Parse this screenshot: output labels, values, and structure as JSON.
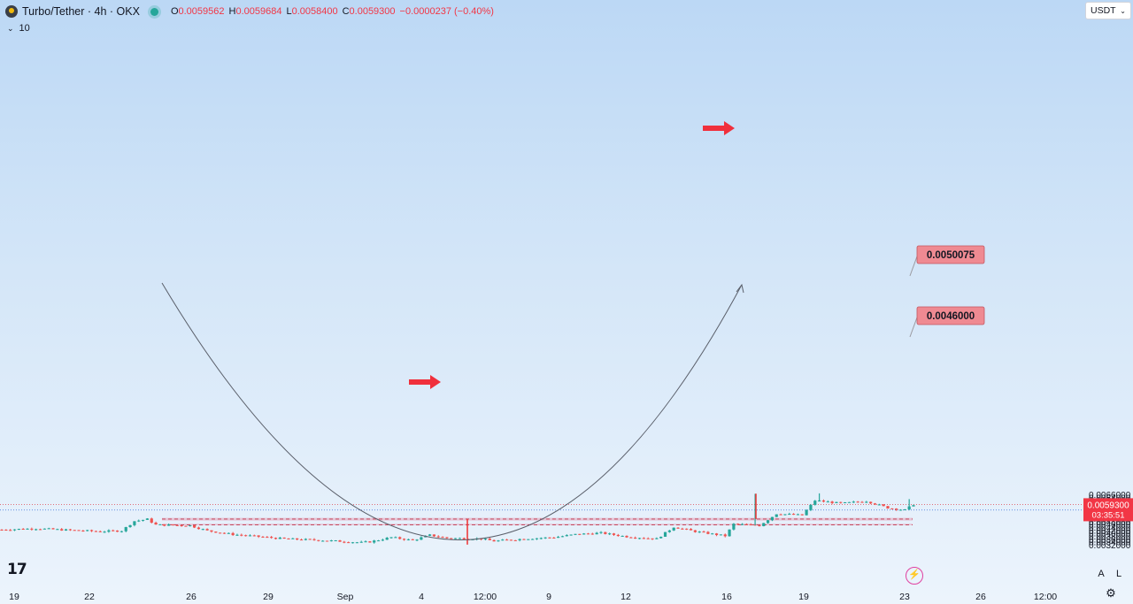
{
  "header": {
    "pair": "Turbo/Tether · 4h · OKX",
    "o_label": "O",
    "o_value": "0.0059562",
    "h_label": "H",
    "h_value": "0.0059684",
    "l_label": "L",
    "l_value": "0.0058400",
    "c_label": "C",
    "c_value": "0.0059300",
    "change": "−0.0000237 (−0.40%)",
    "volume_label": "10"
  },
  "currency_selector": "USDT",
  "tv_logo": "17",
  "buttons": {
    "auto": "A",
    "log": "L",
    "settings_icon": "gear-icon"
  },
  "colors": {
    "up": "#26a69a",
    "down": "#ef5350",
    "zone": "#e8a0b4",
    "line": "#ef3030",
    "price_tag": "#f23645"
  },
  "chart_data": {
    "type": "candlestick",
    "ylim": [
      0.00312,
      0.00678
    ],
    "y_ticks": [
      "0.0032000",
      "0.0034000",
      "0.0036000",
      "0.0038000",
      "0.0040000",
      "0.0042000",
      "0.0044000",
      "0.0046000",
      "0.0048000",
      "0.0050000",
      "0.0052000",
      "0.0054000",
      "0.0056000",
      "0.0058000",
      "0.0060000",
      "0.0062000",
      "0.0064000",
      "0.0066000"
    ],
    "x_ticks": [
      "19",
      "22",
      "26",
      "29",
      "Sep",
      "4",
      "12:00",
      "9",
      "12",
      "16",
      "19",
      "23",
      "26",
      "12:00"
    ],
    "current_price": "0.0059300",
    "countdown": "03:35:51",
    "support_levels": [
      "0.0050075",
      "0.0046000"
    ],
    "zones": [
      [
        0.00484,
        0.00502
      ],
      [
        0.00452,
        0.00462
      ]
    ],
    "horizontal_lines": [
      0.00593,
      0.00555
    ],
    "candle_count": 214,
    "anchors": [
      [
        0,
        0.00422
      ],
      [
        10,
        0.0043
      ],
      [
        20,
        0.0042
      ],
      [
        30,
        0.0041
      ],
      [
        36,
        0.00415
      ],
      [
        40,
        0.0048
      ],
      [
        44,
        0.00493
      ],
      [
        47,
        0.00455
      ],
      [
        58,
        0.0045
      ],
      [
        63,
        0.00415
      ],
      [
        70,
        0.0039
      ],
      [
        78,
        0.00375
      ],
      [
        86,
        0.0036
      ],
      [
        98,
        0.0035
      ],
      [
        110,
        0.00335
      ],
      [
        112,
        0.0034
      ],
      [
        118,
        0.0037
      ],
      [
        125,
        0.0035
      ],
      [
        130,
        0.00385
      ],
      [
        135,
        0.00365
      ],
      [
        146,
        0.0036
      ],
      [
        150,
        0.00345
      ],
      [
        160,
        0.00362
      ],
      [
        168,
        0.0037
      ],
      [
        175,
        0.0039
      ],
      [
        182,
        0.004
      ],
      [
        190,
        0.00375
      ],
      [
        200,
        0.0036
      ],
      [
        205,
        0.0044
      ],
      [
        211,
        0.0041
      ],
      [
        220,
        0.0038
      ],
      [
        223,
        0.0046
      ],
      [
        231,
        0.0045
      ],
      [
        236,
        0.0053
      ],
      [
        244,
        0.0052
      ],
      [
        248,
        0.0062
      ],
      [
        256,
        0.006
      ],
      [
        264,
        0.00615
      ],
      [
        270,
        0.0057
      ],
      [
        275,
        0.00555
      ],
      [
        278,
        0.00593
      ]
    ],
    "spikes": [
      [
        229,
        0.00665
      ],
      [
        249,
        0.00668
      ],
      [
        276,
        0.00629
      ]
    ],
    "arrows": [
      "right-arrow-icon",
      "right-arrow-icon"
    ]
  }
}
